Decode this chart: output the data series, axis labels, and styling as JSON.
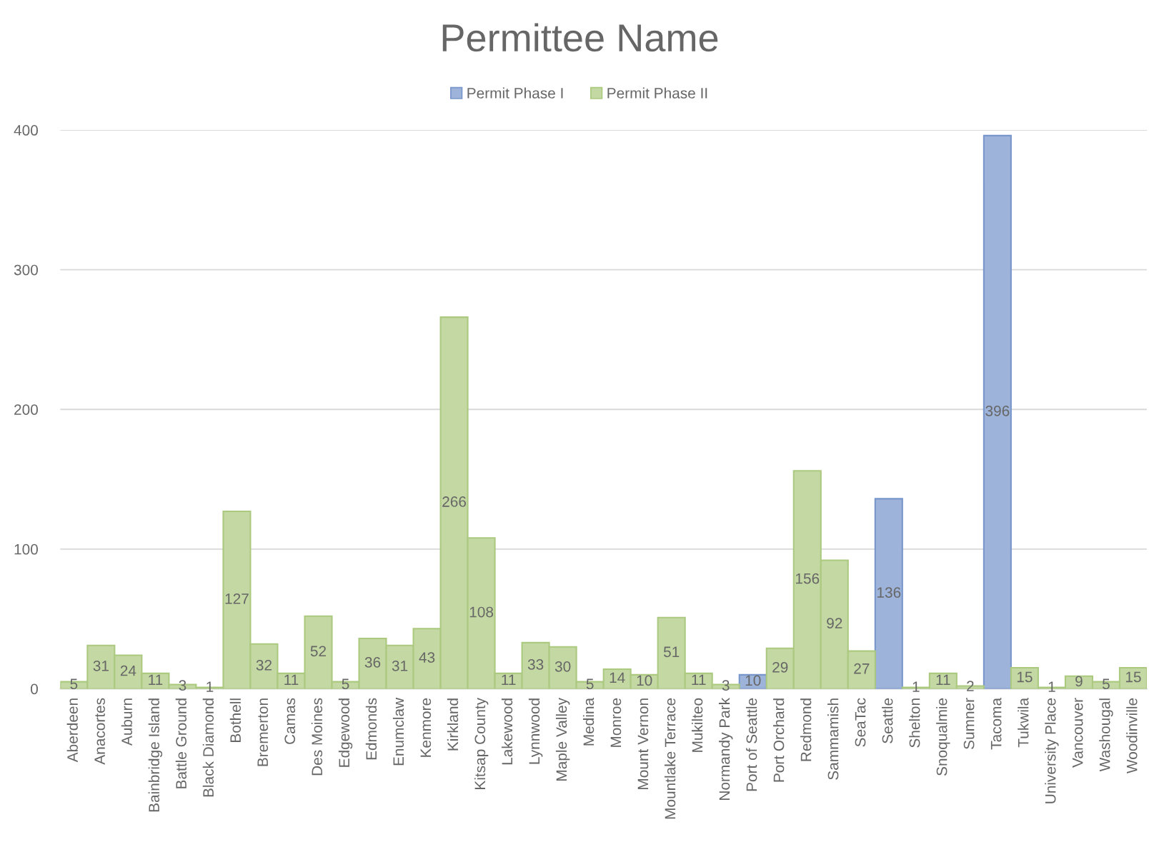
{
  "chart_data": {
    "type": "bar",
    "title": "Permittee Name",
    "categories": [
      "Aberdeen",
      "Anacortes",
      "Auburn",
      "Bainbridge Island",
      "Battle Ground",
      "Black Diamond",
      "Bothell",
      "Bremerton",
      "Camas",
      "Des Moines",
      "Edgewood",
      "Edmonds",
      "Enumclaw",
      "Kenmore",
      "Kirkland",
      "Kitsap County",
      "Lakewood",
      "Lynnwood",
      "Maple Valley",
      "Medina",
      "Monroe",
      "Mount Vernon",
      "Mountlake Terrace",
      "Mukilteo",
      "Normandy Park",
      "Port of Seattle",
      "Port Orchard",
      "Redmond",
      "Sammamish",
      "SeaTac",
      "Seattle",
      "Shelton",
      "Snoqualmie",
      "Sumner",
      "Tacoma",
      "Tukwila",
      "University Place",
      "Vancouver",
      "Washougal",
      "Woodinville"
    ],
    "series": [
      {
        "name": "Permit Phase I",
        "color": "#9db3da",
        "values": [
          null,
          null,
          null,
          null,
          null,
          null,
          null,
          null,
          null,
          null,
          null,
          null,
          null,
          null,
          null,
          null,
          null,
          null,
          null,
          null,
          null,
          null,
          null,
          null,
          null,
          10,
          null,
          null,
          null,
          null,
          136,
          null,
          null,
          null,
          396,
          null,
          null,
          null,
          null,
          null
        ]
      },
      {
        "name": "Permit Phase II",
        "color": "#c3d8a2",
        "values": [
          5,
          31,
          24,
          11,
          3,
          1,
          127,
          32,
          11,
          52,
          5,
          36,
          31,
          43,
          266,
          108,
          11,
          33,
          30,
          5,
          14,
          10,
          51,
          11,
          3,
          null,
          29,
          156,
          92,
          27,
          null,
          1,
          11,
          2,
          null,
          15,
          1,
          9,
          5,
          15
        ]
      }
    ],
    "stacked": true,
    "ylim": [
      0,
      400
    ],
    "yticks": [
      0,
      100,
      200,
      300,
      400
    ],
    "grid": "y",
    "legend": "top",
    "data_labels": true
  }
}
